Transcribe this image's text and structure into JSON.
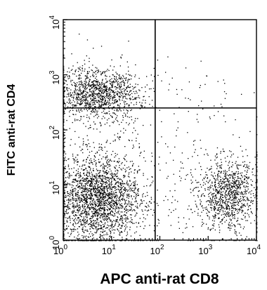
{
  "chart_data": {
    "type": "scatter",
    "title": "",
    "xlabel": "APC anti-rat CD8",
    "ylabel": "FITC anti-rat CD4",
    "x_scale": "log",
    "y_scale": "log",
    "xlim": [
      1,
      10000
    ],
    "ylim": [
      1,
      10000
    ],
    "x_ticks": [
      {
        "base": "10",
        "exp": "0"
      },
      {
        "base": "10",
        "exp": "1"
      },
      {
        "base": "10",
        "exp": "2"
      },
      {
        "base": "10",
        "exp": "3"
      },
      {
        "base": "10",
        "exp": "4"
      }
    ],
    "y_ticks": [
      {
        "base": "10",
        "exp": "0"
      },
      {
        "base": "10",
        "exp": "1"
      },
      {
        "base": "10",
        "exp": "2"
      },
      {
        "base": "10",
        "exp": "3"
      },
      {
        "base": "10",
        "exp": "4"
      }
    ],
    "gates": {
      "x": 80,
      "y": 250
    },
    "grid": false,
    "legend": "none",
    "dot_color": "#000000",
    "populations": [
      {
        "quadrant": "upper-left",
        "center": [
          5,
          450
        ],
        "events": 1300
      },
      {
        "quadrant": "lower-left",
        "center": [
          5,
          6
        ],
        "events": 2600
      },
      {
        "quadrant": "lower-right",
        "center": [
          2500,
          7
        ],
        "events": 1100
      },
      {
        "quadrant": "upper-right",
        "center": [
          1200,
          400
        ],
        "events": 40
      }
    ]
  }
}
